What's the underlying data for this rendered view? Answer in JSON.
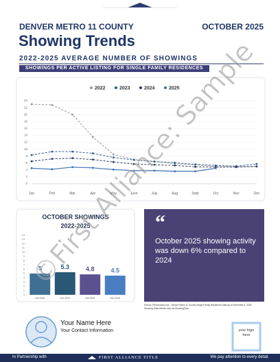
{
  "header": {
    "region": "DENVER METRO 11 COUNTY",
    "date": "OCTOBER 2025",
    "title": "Showing Trends",
    "subtitle": "2022-2025 AVERAGE NUMBER OF SHOWINGS",
    "banner": "SHOWINGS PER ACTIVE LISTING FOR SINGLE FAMILY RESIDENCES"
  },
  "chart_data": [
    {
      "type": "line",
      "categories": [
        "Jan",
        "Feb",
        "Mar",
        "Apr",
        "May",
        "June",
        "July",
        "Aug",
        "Sept",
        "Oct",
        "Nov",
        "Dec"
      ],
      "series": [
        {
          "name": "2022",
          "color": "#9a9a9a",
          "line_style": "dashed",
          "values": [
            23,
            22.8,
            20,
            13.5,
            8.5,
            7,
            6.5,
            5.8,
            5.5,
            5,
            5,
            5
          ]
        },
        {
          "name": "2023",
          "color": "#2e5c8a",
          "line_style": "dashed",
          "values": [
            8.3,
            9.3,
            9.3,
            8.8,
            7.6,
            6.9,
            6.4,
            6.1,
            5.6,
            5.3,
            5.1,
            5.7
          ]
        },
        {
          "name": "2024",
          "color": "#2b3a5e",
          "line_style": "dashed",
          "values": [
            6.5,
            7.2,
            7.4,
            7,
            6.3,
            5.7,
            5.5,
            5.3,
            4.9,
            4.8,
            4.8,
            5
          ]
        },
        {
          "name": "2025",
          "color": "#3d6fb0",
          "line_style": "solid",
          "values": [
            4.5,
            4.2,
            4.8,
            4.6,
            4.1,
            3.8,
            3.8,
            3.6,
            3.6,
            4.5,
            null,
            null
          ]
        }
      ],
      "ylim": [
        0,
        24
      ],
      "yticks": [
        0,
        2,
        4,
        6,
        8,
        10,
        12,
        14,
        16,
        18,
        20,
        22,
        24
      ],
      "grid": true,
      "legend": "top"
    },
    {
      "type": "bar",
      "title": [
        "OCTOBER SHOWINGS",
        "2022-2025"
      ],
      "categories": [
        "Oct 2022",
        "Oct 2023",
        "Oct 2024",
        "Oct 2025"
      ],
      "values": [
        5,
        5.3,
        4.8,
        4.5
      ],
      "colors": [
        "#3f6f93",
        "#2a5775",
        "#5b5190",
        "#4a7ec3"
      ],
      "ylim": [
        0,
        14
      ],
      "yticks": [
        0,
        1,
        2,
        3,
        4,
        5,
        6,
        7,
        8,
        9,
        10,
        11,
        12,
        13,
        14
      ]
    }
  ],
  "callout": {
    "quote": "October 2025 showing activity was down 6% compared to 2024",
    "source": [
      "Source: REcolorado.com - Denver Metro 11 County Single Family Residence Data as of November 5, 2025",
      "Showing Data reflects only via ShowingTime"
    ]
  },
  "agent": {
    "name": "Your Name Here",
    "contact": "Your Contact Information"
  },
  "logo_box": "your logo here",
  "footer": {
    "partner": "In Partnership with",
    "company": "FIRST ALLIANCE TITLE",
    "tagline": "We pay attention to every detail."
  },
  "watermark": "©First Alliance: Sample"
}
